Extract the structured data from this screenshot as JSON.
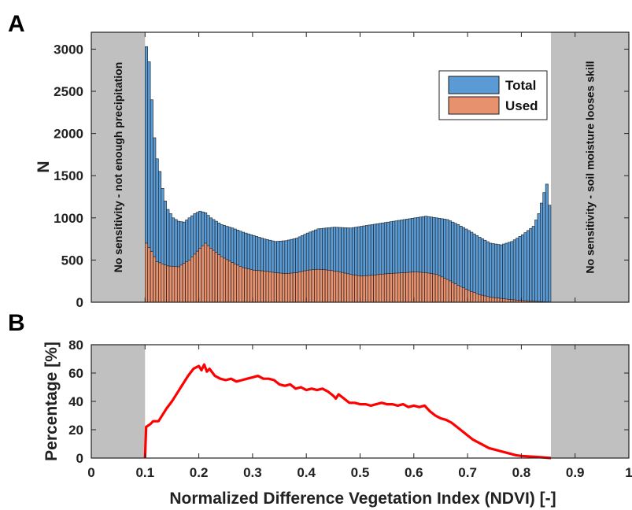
{
  "chart_data": [
    {
      "panel": "A",
      "type": "bar",
      "ylabel": "N",
      "xlim": [
        0,
        1
      ],
      "ylim": [
        0,
        3200
      ],
      "yticks": [
        0,
        500,
        1000,
        1500,
        2000,
        2500,
        3000
      ],
      "legend": {
        "placement": "top-right",
        "entries": [
          "Total",
          "Used"
        ]
      },
      "colors": {
        "Total": "#5b9bd5",
        "Used": "#e8916f",
        "shade": "#c0c0c0"
      },
      "bin_width": 0.005,
      "bin_start": 0.1,
      "bin_end": 0.855,
      "shaded_regions": [
        {
          "from": 0,
          "to": 0.1,
          "label": "No sensitivity - not enough precipitation"
        },
        {
          "from": 0.855,
          "to": 1,
          "label": "No sensitivity - soil moisture looses skill"
        }
      ],
      "series": [
        {
          "name": "Total",
          "points": [
            [
              0.1,
              3030
            ],
            [
              0.105,
              2850
            ],
            [
              0.11,
              2400
            ],
            [
              0.115,
              1950
            ],
            [
              0.12,
              1700
            ],
            [
              0.125,
              1550
            ],
            [
              0.13,
              1350
            ],
            [
              0.135,
              1200
            ],
            [
              0.14,
              1100
            ],
            [
              0.145,
              1050
            ],
            [
              0.15,
              1000
            ],
            [
              0.16,
              960
            ],
            [
              0.17,
              950
            ],
            [
              0.18,
              1000
            ],
            [
              0.19,
              1050
            ],
            [
              0.2,
              1080
            ],
            [
              0.21,
              1060
            ],
            [
              0.22,
              1000
            ],
            [
              0.23,
              960
            ],
            [
              0.24,
              920
            ],
            [
              0.26,
              880
            ],
            [
              0.28,
              830
            ],
            [
              0.3,
              790
            ],
            [
              0.32,
              750
            ],
            [
              0.34,
              720
            ],
            [
              0.36,
              730
            ],
            [
              0.38,
              760
            ],
            [
              0.4,
              820
            ],
            [
              0.42,
              870
            ],
            [
              0.45,
              890
            ],
            [
              0.48,
              880
            ],
            [
              0.5,
              900
            ],
            [
              0.52,
              920
            ],
            [
              0.55,
              950
            ],
            [
              0.58,
              980
            ],
            [
              0.6,
              1000
            ],
            [
              0.62,
              1020
            ],
            [
              0.64,
              1000
            ],
            [
              0.66,
              980
            ],
            [
              0.68,
              920
            ],
            [
              0.7,
              850
            ],
            [
              0.72,
              770
            ],
            [
              0.74,
              700
            ],
            [
              0.76,
              680
            ],
            [
              0.78,
              720
            ],
            [
              0.8,
              800
            ],
            [
              0.82,
              900
            ],
            [
              0.83,
              1050
            ],
            [
              0.84,
              1300
            ],
            [
              0.845,
              1400
            ],
            [
              0.85,
              1150
            ],
            [
              0.855,
              890
            ]
          ]
        },
        {
          "name": "Used",
          "points": [
            [
              0.1,
              700
            ],
            [
              0.11,
              600
            ],
            [
              0.12,
              480
            ],
            [
              0.14,
              430
            ],
            [
              0.16,
              420
            ],
            [
              0.18,
              500
            ],
            [
              0.2,
              640
            ],
            [
              0.21,
              700
            ],
            [
              0.22,
              640
            ],
            [
              0.24,
              540
            ],
            [
              0.26,
              470
            ],
            [
              0.28,
              410
            ],
            [
              0.3,
              380
            ],
            [
              0.32,
              370
            ],
            [
              0.34,
              350
            ],
            [
              0.36,
              340
            ],
            [
              0.38,
              350
            ],
            [
              0.4,
              380
            ],
            [
              0.42,
              390
            ],
            [
              0.44,
              380
            ],
            [
              0.46,
              360
            ],
            [
              0.48,
              330
            ],
            [
              0.5,
              310
            ],
            [
              0.52,
              320
            ],
            [
              0.55,
              340
            ],
            [
              0.58,
              350
            ],
            [
              0.6,
              360
            ],
            [
              0.62,
              350
            ],
            [
              0.64,
              330
            ],
            [
              0.66,
              270
            ],
            [
              0.68,
              200
            ],
            [
              0.7,
              140
            ],
            [
              0.72,
              90
            ],
            [
              0.74,
              60
            ],
            [
              0.76,
              45
            ],
            [
              0.78,
              30
            ],
            [
              0.8,
              20
            ],
            [
              0.82,
              12
            ],
            [
              0.84,
              5
            ],
            [
              0.855,
              2
            ]
          ]
        }
      ]
    },
    {
      "panel": "B",
      "type": "line",
      "xlabel": "Normalized Difference Vegetation Index (NDVI) [-]",
      "ylabel": "Percentage [%]",
      "xlim": [
        0,
        1
      ],
      "ylim": [
        0,
        80
      ],
      "xticks": [
        "0",
        "0.1",
        "0.2",
        "0.3",
        "0.4",
        "0.5",
        "0.6",
        "0.7",
        "0.8",
        "0.9",
        "1"
      ],
      "yticks": [
        0,
        20,
        40,
        60,
        80
      ],
      "colors": {
        "line": "#ff0000",
        "shade": "#c0c0c0"
      },
      "shaded_regions": [
        {
          "from": 0,
          "to": 0.1
        },
        {
          "from": 0.855,
          "to": 1
        }
      ],
      "series": [
        {
          "points": [
            [
              0.1,
              0
            ],
            [
              0.102,
              22
            ],
            [
              0.11,
              24
            ],
            [
              0.115,
              26
            ],
            [
              0.125,
              26
            ],
            [
              0.13,
              29
            ],
            [
              0.14,
              35
            ],
            [
              0.15,
              40
            ],
            [
              0.16,
              46
            ],
            [
              0.17,
              52
            ],
            [
              0.18,
              58
            ],
            [
              0.19,
              63
            ],
            [
              0.2,
              65
            ],
            [
              0.205,
              62
            ],
            [
              0.21,
              66
            ],
            [
              0.215,
              61
            ],
            [
              0.22,
              63
            ],
            [
              0.23,
              58
            ],
            [
              0.24,
              56
            ],
            [
              0.25,
              55
            ],
            [
              0.26,
              56
            ],
            [
              0.27,
              54
            ],
            [
              0.28,
              55
            ],
            [
              0.29,
              56
            ],
            [
              0.3,
              57
            ],
            [
              0.31,
              58
            ],
            [
              0.32,
              56
            ],
            [
              0.33,
              56
            ],
            [
              0.34,
              55
            ],
            [
              0.35,
              52
            ],
            [
              0.36,
              51
            ],
            [
              0.37,
              52
            ],
            [
              0.38,
              49
            ],
            [
              0.39,
              50
            ],
            [
              0.4,
              48
            ],
            [
              0.41,
              49
            ],
            [
              0.42,
              48
            ],
            [
              0.43,
              49
            ],
            [
              0.44,
              47
            ],
            [
              0.45,
              44
            ],
            [
              0.455,
              42
            ],
            [
              0.46,
              45
            ],
            [
              0.47,
              42
            ],
            [
              0.48,
              39
            ],
            [
              0.49,
              39
            ],
            [
              0.5,
              38
            ],
            [
              0.51,
              38
            ],
            [
              0.52,
              37
            ],
            [
              0.53,
              38
            ],
            [
              0.54,
              39
            ],
            [
              0.55,
              38
            ],
            [
              0.56,
              38
            ],
            [
              0.57,
              37
            ],
            [
              0.58,
              38
            ],
            [
              0.59,
              36
            ],
            [
              0.6,
              37
            ],
            [
              0.61,
              36
            ],
            [
              0.62,
              37
            ],
            [
              0.63,
              33
            ],
            [
              0.64,
              30
            ],
            [
              0.65,
              28
            ],
            [
              0.66,
              27
            ],
            [
              0.67,
              25
            ],
            [
              0.68,
              22
            ],
            [
              0.69,
              19
            ],
            [
              0.7,
              16
            ],
            [
              0.71,
              13
            ],
            [
              0.72,
              11
            ],
            [
              0.73,
              9
            ],
            [
              0.74,
              7
            ],
            [
              0.75,
              6
            ],
            [
              0.76,
              5
            ],
            [
              0.77,
              4
            ],
            [
              0.78,
              3
            ],
            [
              0.79,
              2
            ],
            [
              0.8,
              1.5
            ],
            [
              0.82,
              1
            ],
            [
              0.84,
              0.5
            ],
            [
              0.855,
              0
            ]
          ]
        }
      ]
    }
  ],
  "panels": {
    "a": "A",
    "b": "B"
  }
}
